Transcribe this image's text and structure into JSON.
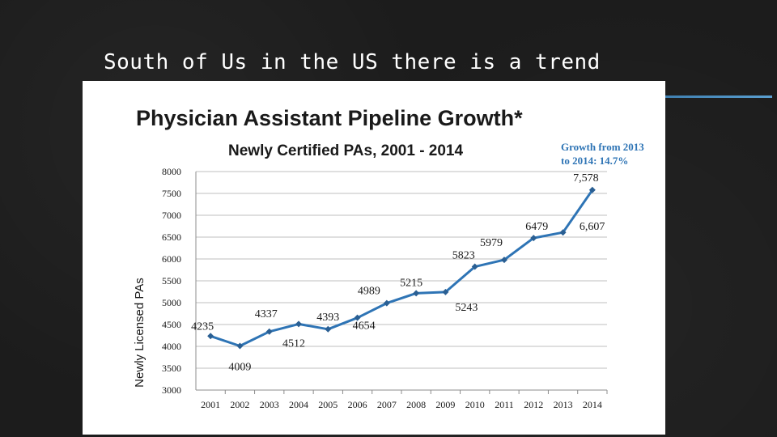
{
  "slide": {
    "title": "South of Us in the US there is a trend"
  },
  "colors": {
    "background": "#1c1c1c",
    "accent": "#4a8ec3",
    "series": "#2e74b5",
    "grid": "#bfbfbf"
  },
  "chart_data": {
    "type": "line",
    "title": "Physician Assistant Pipeline Growth*",
    "subtitle": "Newly Certified PAs, 2001 - 2014",
    "annotation": [
      "Growth from 2013",
      "to 2014: 14.7%"
    ],
    "xlabel": "",
    "ylabel": "Newly Licensed PAs",
    "ylim": [
      3000,
      8000
    ],
    "yticks": [
      "3000",
      "3500",
      "4000",
      "4500",
      "5000",
      "5500",
      "6000",
      "6500",
      "7000",
      "7500",
      "8000"
    ],
    "grid": true,
    "categories": [
      "2001",
      "2002",
      "2003",
      "2004",
      "2005",
      "2006",
      "2007",
      "2008",
      "2009",
      "2010",
      "2011",
      "2012",
      "2013",
      "2014"
    ],
    "series": [
      {
        "name": "Newly Certified PAs",
        "values": [
          4235,
          4009,
          4337,
          4512,
          4393,
          4654,
          4989,
          5215,
          5243,
          5823,
          5979,
          6479,
          6607,
          7578
        ]
      }
    ],
    "data_labels": [
      "4235",
      "4009",
      "4337",
      "4512",
      "4393",
      "4654",
      "4989",
      "5215",
      "5243",
      "5823",
      "5979",
      "6479",
      "6,607",
      "7,578"
    ]
  }
}
